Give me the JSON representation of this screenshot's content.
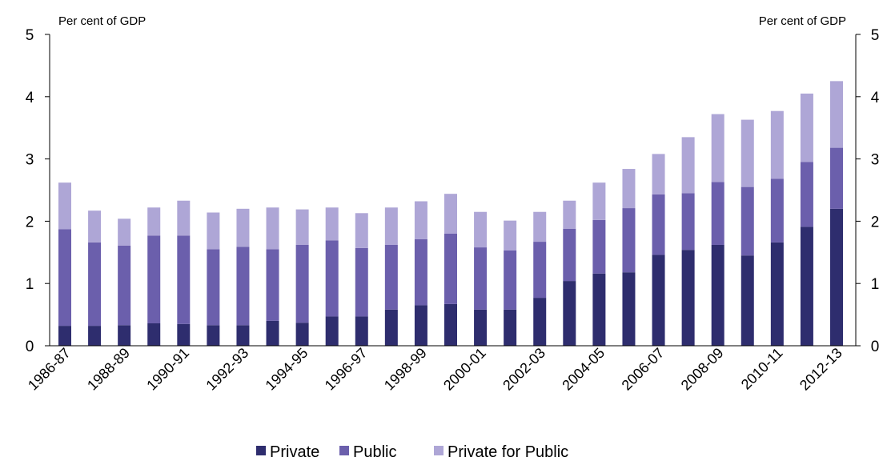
{
  "chart_data": {
    "type": "bar",
    "stacked": true,
    "left_axis_unit": "Per cent of GDP",
    "right_axis_unit": "Per cent of GDP",
    "ylim": [
      0,
      5
    ],
    "yticks": [
      "0",
      "1",
      "2",
      "3",
      "4",
      "5"
    ],
    "categories": [
      "1986-87",
      "1987-88",
      "1988-89",
      "1989-90",
      "1990-91",
      "1991-92",
      "1992-93",
      "1993-94",
      "1994-95",
      "1995-96",
      "1996-97",
      "1997-98",
      "1998-99",
      "1999-00",
      "2000-01",
      "2001-02",
      "2002-03",
      "2003-04",
      "2004-05",
      "2005-06",
      "2006-07",
      "2007-08",
      "2008-09",
      "2009-10",
      "2010-11",
      "2011-12",
      "2012-13"
    ],
    "x_tick_labels": [
      "1986-87",
      "1988-89",
      "1990-91",
      "1992-93",
      "1994-95",
      "1996-97",
      "1998-99",
      "2000-01",
      "2002-03",
      "2004-05",
      "2006-07",
      "2008-09",
      "2010-11",
      "2012-13"
    ],
    "series": [
      {
        "name": "Private",
        "color": "#2e2d6e",
        "values": [
          0.32,
          0.32,
          0.33,
          0.36,
          0.35,
          0.33,
          0.33,
          0.4,
          0.37,
          0.47,
          0.47,
          0.58,
          0.65,
          0.67,
          0.58,
          0.58,
          0.77,
          1.04,
          1.16,
          1.18,
          1.46,
          1.54,
          1.62,
          1.45,
          1.66,
          1.91,
          2.2
        ]
      },
      {
        "name": "Public",
        "color": "#6b5fac",
        "values": [
          1.55,
          1.34,
          1.28,
          1.41,
          1.42,
          1.22,
          1.26,
          1.15,
          1.25,
          1.22,
          1.1,
          1.04,
          1.06,
          1.13,
          1.0,
          0.95,
          0.9,
          0.84,
          0.86,
          1.03,
          0.97,
          0.91,
          1.01,
          1.1,
          1.02,
          1.04,
          0.98
        ]
      },
      {
        "name": "Private for Public",
        "color": "#aea6d6",
        "values": [
          0.75,
          0.51,
          0.43,
          0.45,
          0.56,
          0.59,
          0.61,
          0.67,
          0.57,
          0.53,
          0.56,
          0.6,
          0.61,
          0.64,
          0.57,
          0.48,
          0.48,
          0.45,
          0.6,
          0.63,
          0.65,
          0.9,
          1.09,
          1.08,
          1.09,
          1.1,
          1.07
        ]
      }
    ],
    "legend_position": "bottom-center"
  }
}
